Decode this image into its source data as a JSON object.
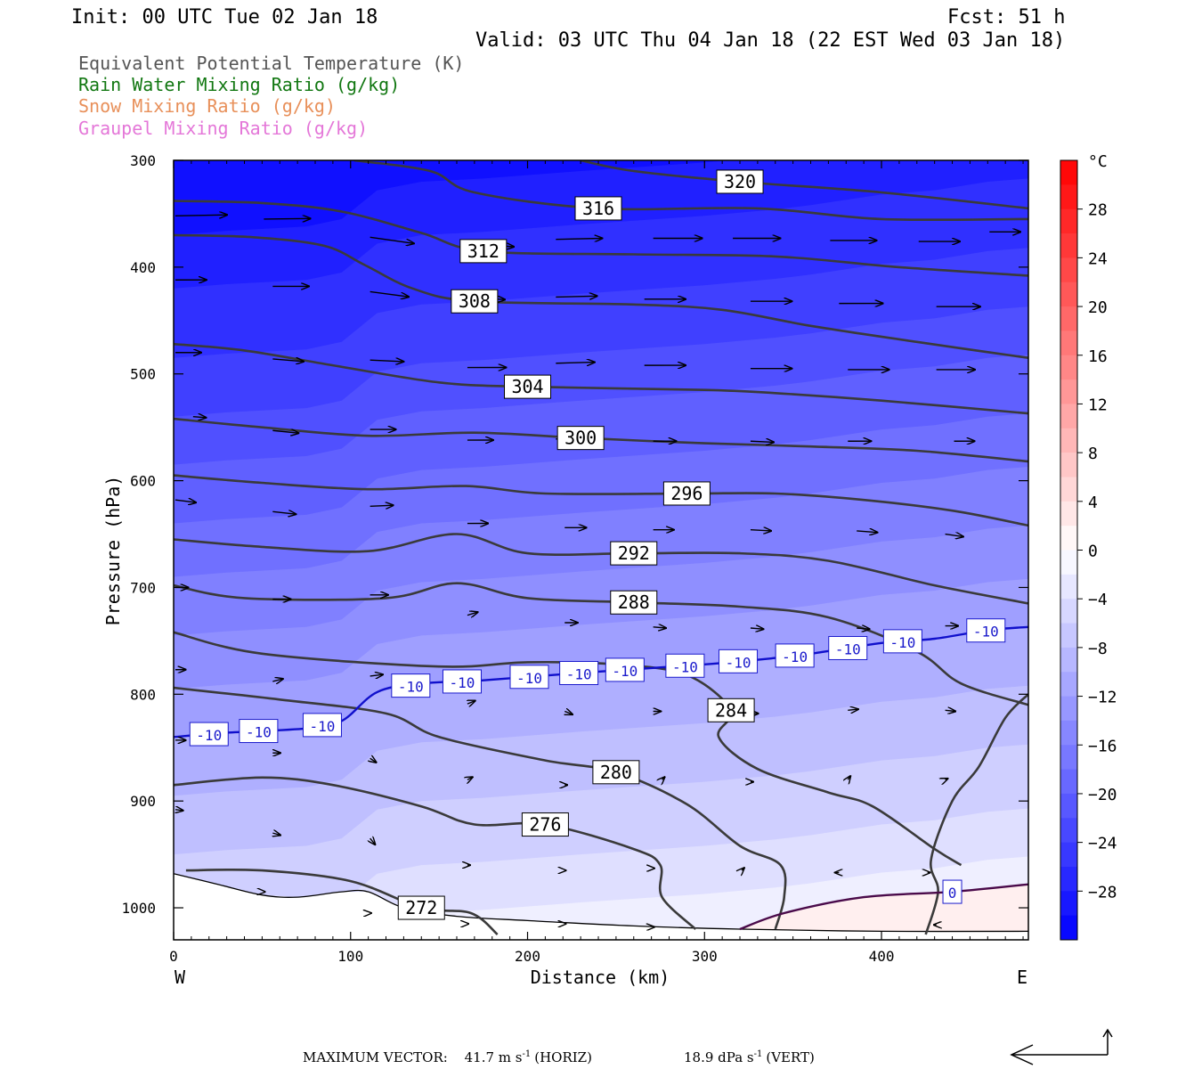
{
  "header": {
    "init": "Init: 00 UTC Tue 02 Jan 18",
    "fcst": "Fcst:   51 h",
    "valid": "Valid: 03 UTC Thu 04 Jan 18 (22 EST Wed 03 Jan 18)"
  },
  "legend": [
    {
      "text": "Equivalent Potential Temperature (K)",
      "color": "#555555"
    },
    {
      "text": "Rain Water Mixing Ratio (g/kg)",
      "color": "#117711"
    },
    {
      "text": "Snow Mixing Ratio (g/kg)",
      "color": "#e8905a"
    },
    {
      "text": "Graupel Mixing Ratio (g/kg)",
      "color": "#e477d8"
    }
  ],
  "footer": {
    "max_label": "MAXIMUM VECTOR:",
    "horiz_value": "41.7 m s",
    "horiz_exp": "-1",
    "horiz_unit": "(HORIZ)",
    "vert_value": "18.9 dPa s",
    "vert_exp": "-1",
    "vert_unit": "(VERT)"
  },
  "chart_data": {
    "type": "cross-section",
    "xlabel": "Distance (km)",
    "ylabel": "Pressure (hPa)",
    "xlim": [
      0,
      483
    ],
    "ylim": [
      1030,
      300
    ],
    "x_ticks": [
      0,
      100,
      200,
      300,
      400
    ],
    "y_ticks": [
      300,
      400,
      500,
      600,
      700,
      800,
      900,
      1000
    ],
    "left_end_label": "W",
    "right_end_label": "E",
    "colorbar": {
      "unit": "°C",
      "ticks": [
        28,
        24,
        20,
        16,
        12,
        8,
        4,
        0,
        -4,
        -8,
        -12,
        -16,
        -20,
        -24,
        -28
      ],
      "min": -32,
      "max": 32
    },
    "theta_e_lines": [
      {
        "label": "316",
        "points": [
          [
            102,
            300
          ],
          [
            145,
            310
          ],
          [
            170,
            330
          ],
          [
            240,
            345
          ],
          [
            330,
            345
          ],
          [
            400,
            355
          ],
          [
            483,
            355
          ]
        ]
      },
      {
        "label": "320",
        "points": [
          [
            230,
            300
          ],
          [
            260,
            310
          ],
          [
            320,
            320
          ],
          [
            400,
            330
          ],
          [
            483,
            345
          ]
        ]
      },
      {
        "label": "312",
        "points": [
          [
            0,
            338
          ],
          [
            50,
            340
          ],
          [
            95,
            348
          ],
          [
            140,
            368
          ],
          [
            175,
            385
          ],
          [
            260,
            388
          ],
          [
            340,
            390
          ],
          [
            410,
            400
          ],
          [
            483,
            408
          ]
        ]
      },
      {
        "label": "308",
        "points": [
          [
            0,
            370
          ],
          [
            45,
            372
          ],
          [
            85,
            380
          ],
          [
            108,
            398
          ],
          [
            135,
            420
          ],
          [
            170,
            432
          ],
          [
            260,
            435
          ],
          [
            310,
            440
          ],
          [
            360,
            455
          ],
          [
            420,
            470
          ],
          [
            483,
            485
          ]
        ]
      },
      {
        "label": "304",
        "points": [
          [
            0,
            472
          ],
          [
            40,
            478
          ],
          [
            90,
            492
          ],
          [
            150,
            508
          ],
          [
            200,
            512
          ],
          [
            300,
            515
          ],
          [
            340,
            518
          ],
          [
            400,
            525
          ],
          [
            483,
            537
          ]
        ]
      },
      {
        "label": "300",
        "points": [
          [
            0,
            542
          ],
          [
            50,
            550
          ],
          [
            110,
            558
          ],
          [
            170,
            555
          ],
          [
            230,
            560
          ],
          [
            300,
            565
          ],
          [
            360,
            568
          ],
          [
            420,
            572
          ],
          [
            483,
            582
          ]
        ]
      },
      {
        "label": "296",
        "points": [
          [
            0,
            595
          ],
          [
            50,
            602
          ],
          [
            110,
            608
          ],
          [
            165,
            605
          ],
          [
            210,
            612
          ],
          [
            290,
            612
          ],
          [
            340,
            612
          ],
          [
            390,
            618
          ],
          [
            440,
            628
          ],
          [
            483,
            642
          ]
        ]
      },
      {
        "label": "292",
        "points": [
          [
            0,
            655
          ],
          [
            50,
            662
          ],
          [
            110,
            666
          ],
          [
            160,
            650
          ],
          [
            200,
            668
          ],
          [
            260,
            668
          ],
          [
            320,
            668
          ],
          [
            370,
            675
          ],
          [
            430,
            698
          ],
          [
            483,
            715
          ]
        ]
      },
      {
        "label": "288",
        "points": [
          [
            0,
            698
          ],
          [
            40,
            710
          ],
          [
            120,
            710
          ],
          [
            160,
            696
          ],
          [
            200,
            710
          ],
          [
            260,
            714
          ],
          [
            320,
            718
          ],
          [
            370,
            728
          ],
          [
            420,
            760
          ],
          [
            445,
            790
          ],
          [
            483,
            810
          ]
        ]
      },
      {
        "label": "284",
        "points": [
          [
            0,
            742
          ],
          [
            50,
            762
          ],
          [
            150,
            774
          ],
          [
            200,
            770
          ],
          [
            250,
            772
          ],
          [
            290,
            782
          ],
          [
            315,
            815
          ],
          [
            308,
            840
          ],
          [
            330,
            870
          ],
          [
            370,
            892
          ],
          [
            395,
            905
          ],
          [
            430,
            945
          ],
          [
            445,
            960
          ]
        ]
      },
      {
        "label": "280",
        "points": [
          [
            0,
            794
          ],
          [
            60,
            805
          ],
          [
            120,
            818
          ],
          [
            150,
            840
          ],
          [
            210,
            862
          ],
          [
            250,
            873
          ],
          [
            290,
            903
          ],
          [
            320,
            942
          ],
          [
            343,
            960
          ],
          [
            345,
            990
          ],
          [
            340,
            1020
          ]
        ]
      },
      {
        "label": "276",
        "points": [
          [
            0,
            885
          ],
          [
            50,
            878
          ],
          [
            90,
            885
          ],
          [
            140,
            905
          ],
          [
            170,
            922
          ],
          [
            210,
            922
          ],
          [
            260,
            945
          ],
          [
            275,
            960
          ],
          [
            276,
            990
          ],
          [
            295,
            1020
          ]
        ]
      },
      {
        "label": "272",
        "points": [
          [
            7,
            965
          ],
          [
            50,
            965
          ],
          [
            100,
            975
          ],
          [
            140,
            1000
          ],
          [
            168,
            1005
          ],
          [
            183,
            1025
          ]
        ]
      },
      {
        "label": "",
        "points": [
          [
            483,
            800
          ],
          [
            470,
            822
          ],
          [
            455,
            868
          ],
          [
            440,
            900
          ],
          [
            428,
            955
          ],
          [
            432,
            985
          ],
          [
            425,
            1025
          ]
        ]
      }
    ],
    "isotherms": [
      {
        "label": "-10",
        "points": [
          [
            0,
            840
          ],
          [
            30,
            836
          ],
          [
            75,
            832
          ],
          [
            95,
            825
          ],
          [
            115,
            798
          ],
          [
            140,
            790
          ],
          [
            175,
            787
          ],
          [
            230,
            780
          ],
          [
            300,
            772
          ],
          [
            340,
            766
          ],
          [
            360,
            762
          ],
          [
            400,
            752
          ],
          [
            430,
            748
          ],
          [
            460,
            740
          ],
          [
            483,
            737
          ]
        ],
        "labels_at_x": [
          20,
          48,
          84,
          134,
          163,
          201,
          229,
          255,
          289,
          319,
          351,
          381,
          412,
          459
        ]
      },
      {
        "label": "0",
        "points": [
          [
            320,
            1020
          ],
          [
            345,
            1005
          ],
          [
            390,
            990
          ],
          [
            440,
            985
          ],
          [
            483,
            978
          ]
        ],
        "labels_at_x": [
          440
        ]
      }
    ],
    "surface": [
      [
        0,
        968
      ],
      [
        25,
        978
      ],
      [
        50,
        988
      ],
      [
        70,
        990
      ],
      [
        95,
        985
      ],
      [
        110,
        985
      ],
      [
        130,
        1000
      ],
      [
        160,
        1008
      ],
      [
        200,
        1012
      ],
      [
        260,
        1017
      ],
      [
        320,
        1020
      ],
      [
        400,
        1022
      ],
      [
        483,
        1022
      ]
    ],
    "wind_vectors": [
      {
        "x": 0,
        "p": 352,
        "u": 1.0,
        "w": 0.02
      },
      {
        "x": 50,
        "p": 355,
        "u": 0.9,
        "w": 0.01
      },
      {
        "x": 110,
        "p": 372,
        "u": 0.85,
        "w": -0.12
      },
      {
        "x": 165,
        "p": 378,
        "u": 0.9,
        "w": -0.06
      },
      {
        "x": 215,
        "p": 374,
        "u": 0.9,
        "w": 0.02
      },
      {
        "x": 270,
        "p": 373,
        "u": 0.95,
        "w": 0.0
      },
      {
        "x": 315,
        "p": 373,
        "u": 0.92,
        "w": 0.0
      },
      {
        "x": 370,
        "p": 375,
        "u": 0.9,
        "w": 0.0
      },
      {
        "x": 420,
        "p": 376,
        "u": 0.8,
        "w": 0.0
      },
      {
        "x": 460,
        "p": 367,
        "u": 0.6,
        "w": 0.0
      },
      {
        "x": 0,
        "p": 412,
        "u": 0.6,
        "w": 0.0
      },
      {
        "x": 55,
        "p": 418,
        "u": 0.7,
        "w": 0.0
      },
      {
        "x": 110,
        "p": 423,
        "u": 0.75,
        "w": -0.1
      },
      {
        "x": 160,
        "p": 428,
        "u": 0.9,
        "w": -0.05
      },
      {
        "x": 215,
        "p": 428,
        "u": 0.8,
        "w": 0.02
      },
      {
        "x": 265,
        "p": 430,
        "u": 0.8,
        "w": 0.0
      },
      {
        "x": 325,
        "p": 432,
        "u": 0.8,
        "w": 0.0
      },
      {
        "x": 375,
        "p": 434,
        "u": 0.85,
        "w": 0.0
      },
      {
        "x": 430,
        "p": 437,
        "u": 0.85,
        "w": 0.0
      },
      {
        "x": 0,
        "p": 480,
        "u": 0.5,
        "w": 0.0
      },
      {
        "x": 55,
        "p": 486,
        "u": 0.6,
        "w": -0.05
      },
      {
        "x": 110,
        "p": 487,
        "u": 0.65,
        "w": -0.03
      },
      {
        "x": 165,
        "p": 494,
        "u": 0.75,
        "w": 0.0
      },
      {
        "x": 215,
        "p": 490,
        "u": 0.75,
        "w": 0.02
      },
      {
        "x": 265,
        "p": 492,
        "u": 0.8,
        "w": 0.0
      },
      {
        "x": 325,
        "p": 495,
        "u": 0.8,
        "w": 0.0
      },
      {
        "x": 380,
        "p": 496,
        "u": 0.8,
        "w": 0.0
      },
      {
        "x": 430,
        "p": 496,
        "u": 0.75,
        "w": 0.0
      },
      {
        "x": 10,
        "p": 540,
        "u": 0.25,
        "w": -0.02
      },
      {
        "x": 55,
        "p": 553,
        "u": 0.5,
        "w": -0.05
      },
      {
        "x": 110,
        "p": 552,
        "u": 0.5,
        "w": 0.0
      },
      {
        "x": 165,
        "p": 562,
        "u": 0.5,
        "w": 0.0
      },
      {
        "x": 215,
        "p": 561,
        "u": 0.5,
        "w": 0.01
      },
      {
        "x": 270,
        "p": 563,
        "u": 0.45,
        "w": 0.0
      },
      {
        "x": 325,
        "p": 563,
        "u": 0.45,
        "w": -0.02
      },
      {
        "x": 380,
        "p": 563,
        "u": 0.45,
        "w": 0.0
      },
      {
        "x": 440,
        "p": 563,
        "u": 0.4,
        "w": 0.0
      },
      {
        "x": 0,
        "p": 618,
        "u": 0.4,
        "w": -0.05
      },
      {
        "x": 55,
        "p": 629,
        "u": 0.45,
        "w": -0.05
      },
      {
        "x": 110,
        "p": 624,
        "u": 0.45,
        "w": 0.02
      },
      {
        "x": 165,
        "p": 640,
        "u": 0.4,
        "w": 0.0
      },
      {
        "x": 220,
        "p": 644,
        "u": 0.42,
        "w": 0.0
      },
      {
        "x": 270,
        "p": 646,
        "u": 0.4,
        "w": 0.0
      },
      {
        "x": 325,
        "p": 646,
        "u": 0.4,
        "w": -0.02
      },
      {
        "x": 385,
        "p": 647,
        "u": 0.4,
        "w": -0.03
      },
      {
        "x": 435,
        "p": 650,
        "u": 0.35,
        "w": -0.05
      },
      {
        "x": 0,
        "p": 700,
        "u": 0.25,
        "w": 0.0
      },
      {
        "x": 55,
        "p": 711,
        "u": 0.35,
        "w": 0.0
      },
      {
        "x": 110,
        "p": 707,
        "u": 0.35,
        "w": 0.0
      },
      {
        "x": 165,
        "p": 726,
        "u": 0.2,
        "w": 0.06
      },
      {
        "x": 220,
        "p": 733,
        "u": 0.25,
        "w": 0.0
      },
      {
        "x": 270,
        "p": 737,
        "u": 0.25,
        "w": -0.02
      },
      {
        "x": 325,
        "p": 738,
        "u": 0.25,
        "w": -0.02
      },
      {
        "x": 385,
        "p": 738,
        "u": 0.25,
        "w": -0.02
      },
      {
        "x": 435,
        "p": 736,
        "u": 0.25,
        "w": 0.0
      },
      {
        "x": 0,
        "p": 777,
        "u": 0.2,
        "w": 0.0
      },
      {
        "x": 55,
        "p": 788,
        "u": 0.2,
        "w": 0.05
      },
      {
        "x": 110,
        "p": 783,
        "u": 0.25,
        "w": 0.03
      },
      {
        "x": 165,
        "p": 809,
        "u": 0.15,
        "w": 0.06
      },
      {
        "x": 220,
        "p": 816,
        "u": 0.15,
        "w": -0.06
      },
      {
        "x": 270,
        "p": 816,
        "u": 0.15,
        "w": 0.0
      },
      {
        "x": 325,
        "p": 818,
        "u": 0.15,
        "w": 0.0
      },
      {
        "x": 380,
        "p": 815,
        "u": 0.2,
        "w": 0.02
      },
      {
        "x": 435,
        "p": 815,
        "u": 0.2,
        "w": -0.02
      },
      {
        "x": 0,
        "p": 843,
        "u": 0.2,
        "w": 0.0
      },
      {
        "x": 55,
        "p": 855,
        "u": 0.15,
        "w": 0.0
      },
      {
        "x": 110,
        "p": 860,
        "u": 0.12,
        "w": -0.08
      },
      {
        "x": 165,
        "p": 880,
        "u": 0.1,
        "w": 0.05
      },
      {
        "x": 220,
        "p": 885,
        "u": 0.05,
        "w": 0.0
      },
      {
        "x": 275,
        "p": 880,
        "u": 0.05,
        "w": 0.05
      },
      {
        "x": 325,
        "p": 882,
        "u": 0.05,
        "w": 0.0
      },
      {
        "x": 380,
        "p": 880,
        "u": 0.05,
        "w": 0.07
      },
      {
        "x": 435,
        "p": 880,
        "u": 0.05,
        "w": 0.02
      },
      {
        "x": 0,
        "p": 908,
        "u": 0.15,
        "w": -0.02
      },
      {
        "x": 55,
        "p": 930,
        "u": 0.15,
        "w": -0.04
      },
      {
        "x": 110,
        "p": 935,
        "u": 0.1,
        "w": -0.12
      },
      {
        "x": 165,
        "p": 960,
        "u": 0.05,
        "w": 0.0
      },
      {
        "x": 220,
        "p": 965,
        "u": 0.02,
        "w": 0.0
      },
      {
        "x": 270,
        "p": 963,
        "u": 0.02,
        "w": 0.0
      },
      {
        "x": 320,
        "p": 965,
        "u": 0.05,
        "w": 0.05
      },
      {
        "x": 375,
        "p": 967,
        "u": -0.08,
        "w": 0.0
      },
      {
        "x": 425,
        "p": 967,
        "u": 0.05,
        "w": 0.0
      },
      {
        "x": 50,
        "p": 985,
        "u": 0.02,
        "w": 0.0
      },
      {
        "x": 110,
        "p": 1005,
        "u": 0.02,
        "w": 0.0
      },
      {
        "x": 165,
        "p": 1015,
        "u": 0.02,
        "w": 0.0
      },
      {
        "x": 220,
        "p": 1015,
        "u": 0.02,
        "w": 0.0
      },
      {
        "x": 270,
        "p": 1018,
        "u": 0.02,
        "w": 0.0
      },
      {
        "x": 430,
        "p": 1016,
        "u": -0.05,
        "w": 0.0
      }
    ]
  }
}
